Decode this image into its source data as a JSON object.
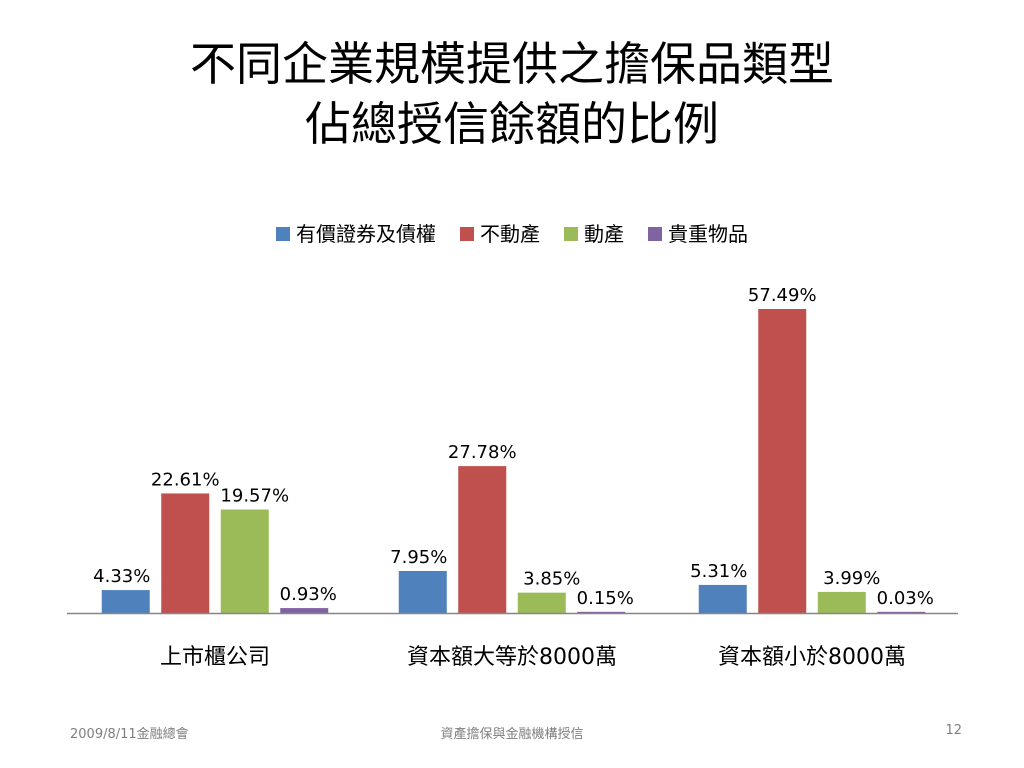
{
  "slide": {
    "title_line1": "不同企業規模提供之擔保品類型",
    "title_line2": "佔總授信餘額的比例",
    "footer_left": "2009/8/11金融總會",
    "footer_center": "資產擔保與金融機構授信",
    "page_number": "12"
  },
  "chart_data": {
    "type": "bar",
    "title": "",
    "xlabel": "",
    "ylabel": "",
    "categories": [
      "上市櫃公司",
      "資本額大等於8000萬",
      "資本額小於8000萬"
    ],
    "series": [
      {
        "name": "有價證券及債權",
        "color": "#4F81BD",
        "values": [
          4.33,
          7.95,
          5.31
        ],
        "labels": [
          "4.33%",
          "7.95%",
          "5.31%"
        ]
      },
      {
        "name": "不動產",
        "color": "#C0504D",
        "values": [
          22.61,
          27.78,
          57.49
        ],
        "labels": [
          "22.61%",
          "27.78%",
          "57.49%"
        ]
      },
      {
        "name": "動產",
        "color": "#9BBB59",
        "values": [
          19.57,
          3.85,
          3.99
        ],
        "labels": [
          "19.57%",
          "3.85%",
          "3.99%"
        ]
      },
      {
        "name": "貴重物品",
        "color": "#8064A2",
        "values": [
          0.93,
          0.15,
          0.03
        ],
        "labels": [
          "0.93%",
          "0.15%",
          "0.03%"
        ]
      }
    ],
    "ylim": [
      0,
      57.49
    ],
    "legend": "top",
    "grid": false
  }
}
